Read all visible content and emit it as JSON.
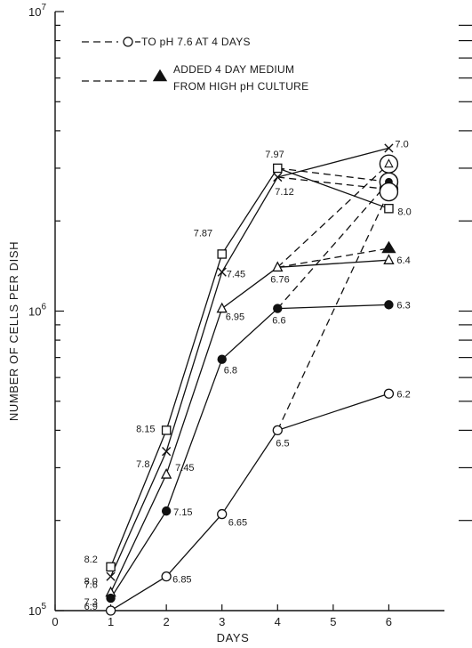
{
  "chart_data": {
    "type": "line",
    "y_scale": "log",
    "xlabel": "DAYS",
    "ylabel": "NUMBER OF CELLS PER DISH",
    "xlim": [
      0,
      7
    ],
    "ylim": [
      100000,
      10000000
    ],
    "x_ticks": [
      "0",
      "1",
      "2",
      "3",
      "4",
      "5",
      "6"
    ],
    "y_tick_labels": [
      {
        "value": 100000,
        "base": "10",
        "exp": "5"
      },
      {
        "value": 1000000,
        "base": "10",
        "exp": "6"
      },
      {
        "value": 10000000,
        "base": "10",
        "exp": "7"
      }
    ],
    "grid": false,
    "legend": {
      "position": "top-left",
      "entries": [
        {
          "text": "TO pH 7.6 AT 4 DAYS",
          "marker": "open-circle",
          "line": "dashed"
        },
        {
          "text": "ADDED 4 DAY MEDIUM",
          "text2": "FROM HIGH pH CULTURE",
          "marker": "filled-triangle",
          "line": "dash-dot"
        }
      ]
    },
    "series": [
      {
        "marker": "square",
        "x": [
          1,
          2,
          3,
          4,
          6
        ],
        "y": [
          140000,
          400000,
          1550000,
          3000000,
          2200000
        ]
      },
      {
        "marker": "x",
        "x": [
          1,
          2,
          3,
          4,
          6
        ],
        "y": [
          130000,
          340000,
          1350000,
          2800000,
          3500000
        ]
      },
      {
        "marker": "triangle",
        "x": [
          1,
          2,
          3,
          4,
          6
        ],
        "y": [
          115000,
          285000,
          1020000,
          1400000,
          1480000
        ]
      },
      {
        "marker": "filled-circle",
        "x": [
          1,
          2,
          3,
          4,
          6
        ],
        "y": [
          110000,
          215000,
          690000,
          1020000,
          1050000
        ]
      },
      {
        "marker": "open-circle",
        "x": [
          1,
          2,
          3,
          4,
          6
        ],
        "y": [
          100000,
          130000,
          210000,
          400000,
          530000
        ]
      }
    ],
    "dashed_branches": [
      {
        "marker": "square",
        "x": [
          4,
          6
        ],
        "y": [
          3000000,
          2700000
        ]
      },
      {
        "marker": "x",
        "x": [
          4,
          6
        ],
        "y": [
          2800000,
          2550000
        ]
      },
      {
        "marker": "triangle",
        "x": [
          4,
          6
        ],
        "y": [
          1400000,
          3100000
        ]
      },
      {
        "marker": "filled-circle",
        "x": [
          4,
          6
        ],
        "y": [
          1020000,
          2700000
        ]
      },
      {
        "marker": "open-circle",
        "x": [
          4,
          6
        ],
        "y": [
          400000,
          2500000
        ]
      }
    ],
    "dashdot_branch": {
      "marker": "filled-triangle",
      "x": [
        4,
        6
      ],
      "y": [
        1400000,
        1620000
      ]
    },
    "data_labels": [
      {
        "text": "8.2",
        "x": 1,
        "y": 140000,
        "dx": -30,
        "dy": -5
      },
      {
        "text": "8.0",
        "x": 1,
        "y": 130000,
        "dx": -30,
        "dy": 9
      },
      {
        "text": "7.6",
        "x": 1,
        "y": 115000,
        "dx": -30,
        "dy": -5
      },
      {
        "text": "7.3",
        "x": 1,
        "y": 110000,
        "dx": -30,
        "dy": 8
      },
      {
        "text": "6.9",
        "x": 1,
        "y": 100000,
        "dx": -30,
        "dy": -1
      },
      {
        "text": "8.15",
        "x": 2,
        "y": 400000,
        "dx": -34,
        "dy": 2
      },
      {
        "text": "7.8",
        "x": 2,
        "y": 340000,
        "dx": -34,
        "dy": 18
      },
      {
        "text": "7.45",
        "x": 2,
        "y": 285000,
        "dx": 10,
        "dy": -4
      },
      {
        "text": "7.15",
        "x": 2,
        "y": 215000,
        "dx": 8,
        "dy": 5
      },
      {
        "text": "6.85",
        "x": 2,
        "y": 130000,
        "dx": 7,
        "dy": 7
      },
      {
        "text": "7.87",
        "x": 3,
        "y": 1550000,
        "dx": -32,
        "dy": -20
      },
      {
        "text": "7.45",
        "x": 3,
        "y": 1350000,
        "dx": 5,
        "dy": 6
      },
      {
        "text": "6.95",
        "x": 3,
        "y": 1020000,
        "dx": 4,
        "dy": 13
      },
      {
        "text": "6.8",
        "x": 3,
        "y": 690000,
        "dx": 2,
        "dy": 16
      },
      {
        "text": "6.65",
        "x": 3,
        "y": 210000,
        "dx": 7,
        "dy": 13
      },
      {
        "text": "7.97",
        "x": 4,
        "y": 3000000,
        "dx": -14,
        "dy": -12
      },
      {
        "text": "7.12",
        "x": 4,
        "y": 2800000,
        "dx": -3,
        "dy": 20
      },
      {
        "text": "6.76",
        "x": 4,
        "y": 1400000,
        "dx": -8,
        "dy": 17
      },
      {
        "text": "6.6",
        "x": 4,
        "y": 1020000,
        "dx": -6,
        "dy": 17
      },
      {
        "text": "6.5",
        "x": 4,
        "y": 400000,
        "dx": -2,
        "dy": 18
      },
      {
        "text": "7.0",
        "x": 6,
        "y": 3500000,
        "dx": 7,
        "dy": -1
      },
      {
        "text": "8.0",
        "x": 6,
        "y": 2200000,
        "dx": 10,
        "dy": 7
      },
      {
        "text": "6.4",
        "x": 6,
        "y": 1480000,
        "dx": 9,
        "dy": 4
      },
      {
        "text": "6.3",
        "x": 6,
        "y": 1050000,
        "dx": 9,
        "dy": 4
      },
      {
        "text": "6.2",
        "x": 6,
        "y": 530000,
        "dx": 9,
        "dy": 4
      }
    ]
  }
}
